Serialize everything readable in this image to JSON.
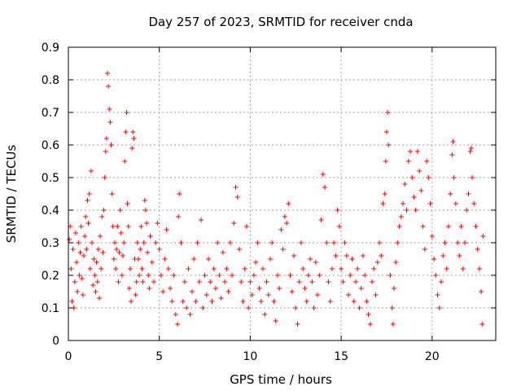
{
  "chart_data": {
    "type": "scatter",
    "title": "Day 257 of 2023, SRMTID for receiver cnda",
    "xlabel": "GPS time / hours",
    "ylabel": "SRMTID / TECUs",
    "xlim": [
      0,
      23.5
    ],
    "ylim": [
      0,
      0.9
    ],
    "xticks": [
      0,
      5,
      10,
      15,
      20
    ],
    "xtick_labels": [
      "0",
      "5",
      "10",
      "15",
      "20"
    ],
    "yticks": [
      0,
      0.1,
      0.2,
      0.3,
      0.4,
      0.5,
      0.6,
      0.7,
      0.8,
      0.9
    ],
    "ytick_labels": [
      "0",
      "0.1",
      "0.2",
      "0.3",
      "0.4",
      "0.5",
      "0.6",
      "0.7",
      "0.8",
      "0.9"
    ],
    "grid": true,
    "marker": "+",
    "color": "#ff0000",
    "series": [
      {
        "name": "SRMTID",
        "points": [
          [
            0.05,
            0.31
          ],
          [
            0.1,
            0.35
          ],
          [
            0.15,
            0.22
          ],
          [
            0.2,
            0.12
          ],
          [
            0.25,
            0.28
          ],
          [
            0.3,
            0.1
          ],
          [
            0.35,
            0.18
          ],
          [
            0.4,
            0.33
          ],
          [
            0.45,
            0.24
          ],
          [
            0.5,
            0.15
          ],
          [
            0.55,
            0.3
          ],
          [
            0.6,
            0.2
          ],
          [
            0.65,
            0.27
          ],
          [
            0.7,
            0.35
          ],
          [
            0.75,
            0.19
          ],
          [
            0.8,
            0.14
          ],
          [
            0.85,
            0.26
          ],
          [
            0.9,
            0.32
          ],
          [
            0.95,
            0.38
          ],
          [
            1.0,
            0.28
          ],
          [
            1.05,
            0.43
          ],
          [
            1.1,
            0.36
          ],
          [
            1.15,
            0.45
          ],
          [
            1.2,
            0.22
          ],
          [
            1.25,
            0.52
          ],
          [
            1.3,
            0.3
          ],
          [
            1.35,
            0.17
          ],
          [
            1.4,
            0.25
          ],
          [
            1.45,
            0.2
          ],
          [
            1.5,
            0.15
          ],
          [
            1.55,
            0.24
          ],
          [
            1.6,
            0.18
          ],
          [
            1.65,
            0.28
          ],
          [
            1.7,
            0.13
          ],
          [
            1.75,
            0.32
          ],
          [
            1.8,
            0.22
          ],
          [
            1.85,
            0.38
          ],
          [
            1.9,
            0.27
          ],
          [
            1.95,
            0.4
          ],
          [
            2.0,
            0.5
          ],
          [
            2.05,
            0.58
          ],
          [
            2.1,
            0.62
          ],
          [
            2.15,
            0.82
          ],
          [
            2.2,
            0.78
          ],
          [
            2.25,
            0.71
          ],
          [
            2.3,
            0.67
          ],
          [
            2.35,
            0.6
          ],
          [
            2.4,
            0.45
          ],
          [
            2.45,
            0.35
          ],
          [
            2.5,
            0.25
          ],
          [
            2.55,
            0.3
          ],
          [
            2.6,
            0.22
          ],
          [
            2.65,
            0.28
          ],
          [
            2.7,
            0.35
          ],
          [
            2.75,
            0.18
          ],
          [
            2.8,
            0.27
          ],
          [
            2.85,
            0.4
          ],
          [
            2.9,
            0.33
          ],
          [
            2.95,
            0.2
          ],
          [
            3.0,
            0.26
          ],
          [
            3.05,
            0.3
          ],
          [
            3.1,
            0.55
          ],
          [
            3.15,
            0.64
          ],
          [
            3.2,
            0.7
          ],
          [
            3.25,
            0.42
          ],
          [
            3.3,
            0.35
          ],
          [
            3.35,
            0.16
          ],
          [
            3.4,
            0.22
          ],
          [
            3.45,
            0.12
          ],
          [
            3.5,
            0.59
          ],
          [
            3.55,
            0.64
          ],
          [
            3.6,
            0.62
          ],
          [
            3.65,
            0.25
          ],
          [
            3.7,
            0.14
          ],
          [
            3.75,
            0.18
          ],
          [
            3.8,
            0.3
          ],
          [
            3.85,
            0.25
          ],
          [
            3.9,
            0.2
          ],
          [
            3.95,
            0.28
          ],
          [
            4.0,
            0.35
          ],
          [
            4.05,
            0.22
          ],
          [
            4.1,
            0.18
          ],
          [
            4.15,
            0.3
          ],
          [
            4.2,
            0.43
          ],
          [
            4.25,
            0.4
          ],
          [
            4.3,
            0.36
          ],
          [
            4.35,
            0.27
          ],
          [
            4.4,
            0.2
          ],
          [
            4.45,
            0.16
          ],
          [
            4.5,
            0.32
          ],
          [
            4.6,
            0.24
          ],
          [
            4.7,
            0.18
          ],
          [
            4.8,
            0.3
          ],
          [
            4.9,
            0.36
          ],
          [
            5.0,
            0.28
          ],
          [
            5.1,
            0.2
          ],
          [
            5.2,
            0.15
          ],
          [
            5.3,
            0.25
          ],
          [
            5.4,
            0.34
          ],
          [
            5.5,
            0.22
          ],
          [
            5.6,
            0.16
          ],
          [
            5.7,
            0.12
          ],
          [
            5.8,
            0.2
          ],
          [
            5.9,
            0.08
          ],
          [
            6.0,
            0.05
          ],
          [
            6.05,
            0.38
          ],
          [
            6.1,
            0.45
          ],
          [
            6.2,
            0.3
          ],
          [
            6.3,
            0.12
          ],
          [
            6.4,
            0.18
          ],
          [
            6.5,
            0.1
          ],
          [
            6.6,
            0.22
          ],
          [
            6.7,
            0.08
          ],
          [
            6.8,
            0.15
          ],
          [
            6.9,
            0.25
          ],
          [
            7.0,
            0.12
          ],
          [
            7.1,
            0.3
          ],
          [
            7.2,
            0.18
          ],
          [
            7.3,
            0.37
          ],
          [
            7.4,
            0.1
          ],
          [
            7.5,
            0.2
          ],
          [
            7.6,
            0.14
          ],
          [
            7.7,
            0.25
          ],
          [
            7.8,
            0.18
          ],
          [
            7.9,
            0.12
          ],
          [
            8.0,
            0.22
          ],
          [
            8.1,
            0.16
          ],
          [
            8.2,
            0.3
          ],
          [
            8.3,
            0.2
          ],
          [
            8.4,
            0.13
          ],
          [
            8.5,
            0.27
          ],
          [
            8.6,
            0.18
          ],
          [
            8.7,
            0.22
          ],
          [
            8.8,
            0.15
          ],
          [
            8.9,
            0.3
          ],
          [
            9.0,
            0.2
          ],
          [
            9.1,
            0.36
          ],
          [
            9.2,
            0.47
          ],
          [
            9.3,
            0.44
          ],
          [
            9.4,
            0.28
          ],
          [
            9.5,
            0.18
          ],
          [
            9.6,
            0.12
          ],
          [
            9.7,
            0.22
          ],
          [
            9.8,
            0.35
          ],
          [
            9.9,
            0.1
          ],
          [
            10.0,
            0.18
          ],
          [
            10.1,
            0.14
          ],
          [
            10.2,
            0.2
          ],
          [
            10.3,
            0.24
          ],
          [
            10.4,
            0.3
          ],
          [
            10.5,
            0.16
          ],
          [
            10.6,
            0.12
          ],
          [
            10.7,
            0.22
          ],
          [
            10.8,
            0.08
          ],
          [
            10.9,
            0.18
          ],
          [
            11.0,
            0.14
          ],
          [
            11.1,
            0.25
          ],
          [
            11.2,
            0.3
          ],
          [
            11.3,
            0.12
          ],
          [
            11.4,
            0.06
          ],
          [
            11.5,
            0.2
          ],
          [
            11.6,
            0.16
          ],
          [
            11.7,
            0.34
          ],
          [
            11.8,
            0.28
          ],
          [
            11.9,
            0.38
          ],
          [
            12.0,
            0.36
          ],
          [
            12.1,
            0.42
          ],
          [
            12.2,
            0.2
          ],
          [
            12.3,
            0.15
          ],
          [
            12.4,
            0.26
          ],
          [
            12.5,
            0.1
          ],
          [
            12.6,
            0.05
          ],
          [
            12.7,
            0.18
          ],
          [
            12.8,
            0.3
          ],
          [
            12.9,
            0.22
          ],
          [
            13.0,
            0.16
          ],
          [
            13.1,
            0.12
          ],
          [
            13.2,
            0.2
          ],
          [
            13.3,
            0.25
          ],
          [
            13.4,
            0.18
          ],
          [
            13.5,
            0.1
          ],
          [
            13.6,
            0.24
          ],
          [
            13.7,
            0.14
          ],
          [
            13.8,
            0.2
          ],
          [
            13.9,
            0.37
          ],
          [
            14.0,
            0.51
          ],
          [
            14.1,
            0.47
          ],
          [
            14.2,
            0.3
          ],
          [
            14.3,
            0.18
          ],
          [
            14.4,
            0.12
          ],
          [
            14.5,
            0.22
          ],
          [
            14.6,
            0.3
          ],
          [
            14.7,
            0.26
          ],
          [
            14.8,
            0.4
          ],
          [
            14.9,
            0.35
          ],
          [
            15.0,
            0.22
          ],
          [
            15.1,
            0.18
          ],
          [
            15.2,
            0.3
          ],
          [
            15.3,
            0.26
          ],
          [
            15.4,
            0.14
          ],
          [
            15.5,
            0.2
          ],
          [
            15.6,
            0.25
          ],
          [
            15.7,
            0.12
          ],
          [
            15.8,
            0.18
          ],
          [
            15.9,
            0.22
          ],
          [
            16.0,
            0.1
          ],
          [
            16.1,
            0.16
          ],
          [
            16.2,
            0.26
          ],
          [
            16.3,
            0.2
          ],
          [
            16.4,
            0.12
          ],
          [
            16.5,
            0.08
          ],
          [
            16.6,
            0.05
          ],
          [
            16.7,
            0.18
          ],
          [
            16.8,
            0.22
          ],
          [
            16.9,
            0.14
          ],
          [
            17.0,
            0.24
          ],
          [
            17.1,
            0.3
          ],
          [
            17.2,
            0.26
          ],
          [
            17.3,
            0.42
          ],
          [
            17.4,
            0.45
          ],
          [
            17.45,
            0.55
          ],
          [
            17.5,
            0.64
          ],
          [
            17.55,
            0.7
          ],
          [
            17.6,
            0.6
          ],
          [
            17.7,
            0.2
          ],
          [
            17.8,
            0.1
          ],
          [
            17.85,
            0.05
          ],
          [
            17.9,
            0.16
          ],
          [
            18.0,
            0.24
          ],
          [
            18.1,
            0.3
          ],
          [
            18.2,
            0.35
          ],
          [
            18.3,
            0.38
          ],
          [
            18.4,
            0.42
          ],
          [
            18.5,
            0.48
          ],
          [
            18.6,
            0.4
          ],
          [
            18.7,
            0.55
          ],
          [
            18.8,
            0.58
          ],
          [
            18.9,
            0.5
          ],
          [
            19.0,
            0.44
          ],
          [
            19.1,
            0.4
          ],
          [
            19.2,
            0.58
          ],
          [
            19.3,
            0.52
          ],
          [
            19.4,
            0.46
          ],
          [
            19.5,
            0.35
          ],
          [
            19.6,
            0.28
          ],
          [
            19.7,
            0.55
          ],
          [
            19.8,
            0.5
          ],
          [
            19.9,
            0.42
          ],
          [
            20.0,
            0.32
          ],
          [
            20.1,
            0.25
          ],
          [
            20.2,
            0.2
          ],
          [
            20.3,
            0.14
          ],
          [
            20.4,
            0.1
          ],
          [
            20.5,
            0.18
          ],
          [
            20.6,
            0.26
          ],
          [
            20.7,
            0.3
          ],
          [
            20.8,
            0.22
          ],
          [
            20.9,
            0.35
          ],
          [
            21.0,
            0.45
          ],
          [
            21.1,
            0.57
          ],
          [
            21.15,
            0.61
          ],
          [
            21.2,
            0.5
          ],
          [
            21.3,
            0.42
          ],
          [
            21.4,
            0.3
          ],
          [
            21.5,
            0.26
          ],
          [
            21.6,
            0.35
          ],
          [
            21.7,
            0.22
          ],
          [
            21.8,
            0.3
          ],
          [
            21.9,
            0.4
          ],
          [
            22.0,
            0.45
          ],
          [
            22.1,
            0.58
          ],
          [
            22.15,
            0.59
          ],
          [
            22.2,
            0.5
          ],
          [
            22.3,
            0.42
          ],
          [
            22.4,
            0.35
          ],
          [
            22.5,
            0.28
          ],
          [
            22.6,
            0.22
          ],
          [
            22.7,
            0.15
          ],
          [
            22.75,
            0.05
          ],
          [
            22.8,
            0.32
          ]
        ]
      }
    ]
  }
}
